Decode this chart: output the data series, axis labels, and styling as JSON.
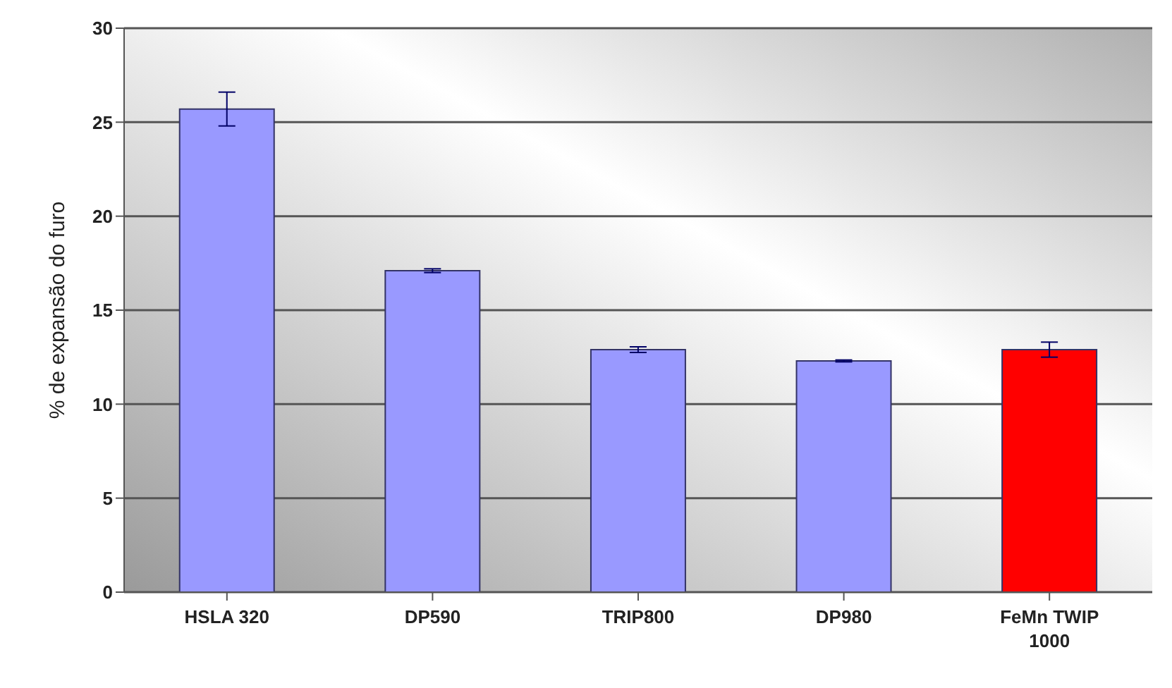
{
  "chart_data": {
    "type": "bar",
    "ylabel": "% de expansão do furo",
    "categories": [
      "HSLA 320",
      "DP590",
      "TRIP800",
      "DP980",
      "FeMn TWIP 1000"
    ],
    "values": [
      25.7,
      17.1,
      12.9,
      12.3,
      12.9
    ],
    "errors": [
      0.9,
      0.1,
      0.15,
      0.05,
      0.4
    ],
    "colors": [
      "#9999ff",
      "#9999ff",
      "#9999ff",
      "#9999ff",
      "#ff0000"
    ],
    "ylim": [
      0,
      30
    ],
    "yticks": [
      0,
      5,
      10,
      15,
      20,
      25,
      30
    ],
    "grid": "y"
  }
}
